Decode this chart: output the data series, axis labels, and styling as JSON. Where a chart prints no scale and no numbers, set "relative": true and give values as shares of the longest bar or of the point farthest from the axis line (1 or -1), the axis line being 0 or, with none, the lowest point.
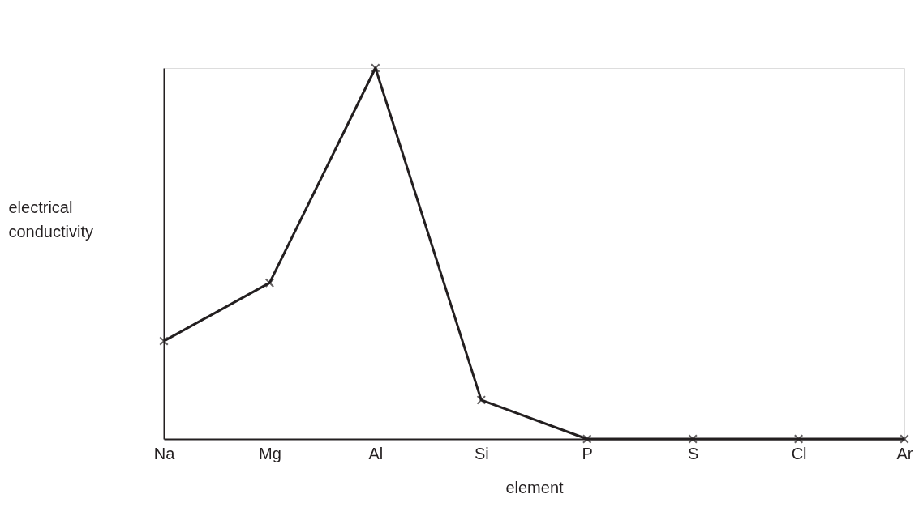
{
  "chart_data": {
    "type": "line",
    "relative": true,
    "xlabel": "element",
    "ylabel": "electrical\nconductivity",
    "categories": [
      "Na",
      "Mg",
      "Al",
      "Si",
      "P",
      "S",
      "Cl",
      "Ar"
    ],
    "series": [
      {
        "color": "#231f20",
        "values": [
          0.264,
          0.421,
          1,
          0.105,
          0,
          0,
          0,
          0
        ]
      }
    ],
    "marker": "cross",
    "line_style": "solid",
    "grid": false
  }
}
